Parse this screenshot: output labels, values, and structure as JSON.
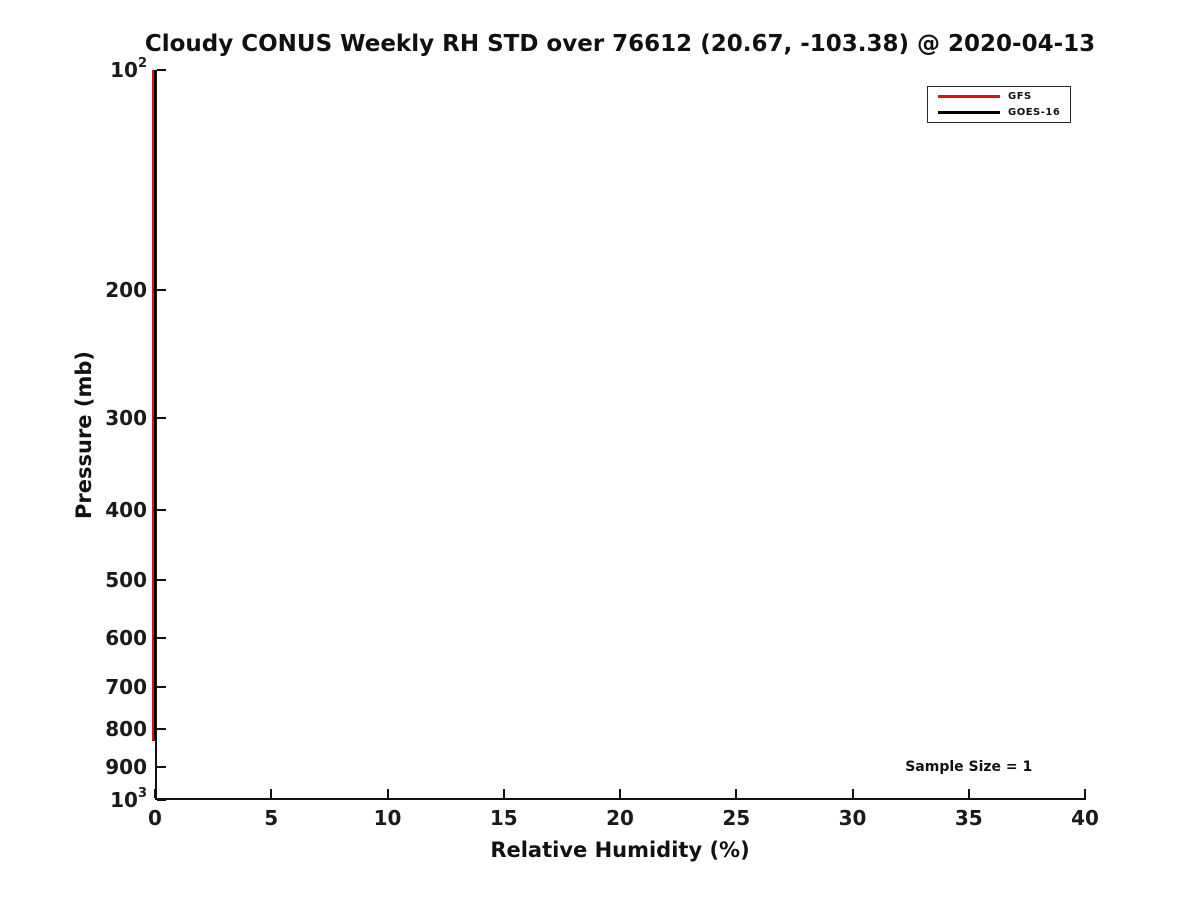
{
  "chart_data": {
    "type": "line",
    "title": "Cloudy CONUS Weekly RH STD over 76612 (20.67, -103.38) @ 2020-04-13",
    "xlabel": "Relative Humidity (%)",
    "ylabel": "Pressure (mb)",
    "x_range": [
      0,
      40
    ],
    "y_range": [
      100,
      1000
    ],
    "y_scale": "log",
    "y_inverted": true,
    "grid": false,
    "background": "#ffffff",
    "x_ticks": [
      {
        "value": 0,
        "label": "0"
      },
      {
        "value": 5,
        "label": "5"
      },
      {
        "value": 10,
        "label": "10"
      },
      {
        "value": 15,
        "label": "15"
      },
      {
        "value": 20,
        "label": "20"
      },
      {
        "value": 25,
        "label": "25"
      },
      {
        "value": 30,
        "label": "30"
      },
      {
        "value": 35,
        "label": "35"
      },
      {
        "value": 40,
        "label": "40"
      }
    ],
    "y_ticks": [
      {
        "value": 100,
        "label_base": "10",
        "label_exp": "2"
      },
      {
        "value": 200,
        "label": "200"
      },
      {
        "value": 300,
        "label": "300"
      },
      {
        "value": 400,
        "label": "400"
      },
      {
        "value": 500,
        "label": "500"
      },
      {
        "value": 600,
        "label": "600"
      },
      {
        "value": 700,
        "label": "700"
      },
      {
        "value": 800,
        "label": "800"
      },
      {
        "value": 900,
        "label": "900"
      },
      {
        "value": 1000,
        "label_base": "10",
        "label_exp": "3"
      }
    ],
    "series": [
      {
        "name": "GFS",
        "color": "#dd1111",
        "note": "vertical line at RH STD = 0 (%) overlapping the y-axis, from 100 mb to ~830 mb",
        "points": [
          {
            "x": 0,
            "p": 100
          },
          {
            "x": 0,
            "p": 830
          }
        ]
      },
      {
        "name": "GOES-16",
        "color": "#000000",
        "note": "vertical line at RH STD = 0 (%) overlapping the y-axis, drawn over the GFS line",
        "points": [
          {
            "x": 0,
            "p": 100
          },
          {
            "x": 0,
            "p": 830
          }
        ]
      }
    ],
    "legend": {
      "position": "upper right",
      "items": [
        {
          "label": "GFS",
          "color": "#dd1111"
        },
        {
          "label": "GOES-16",
          "color": "#000000"
        }
      ]
    },
    "annotations": [
      {
        "text": "Sample Size = 1",
        "x": 35,
        "y": 900
      }
    ]
  }
}
